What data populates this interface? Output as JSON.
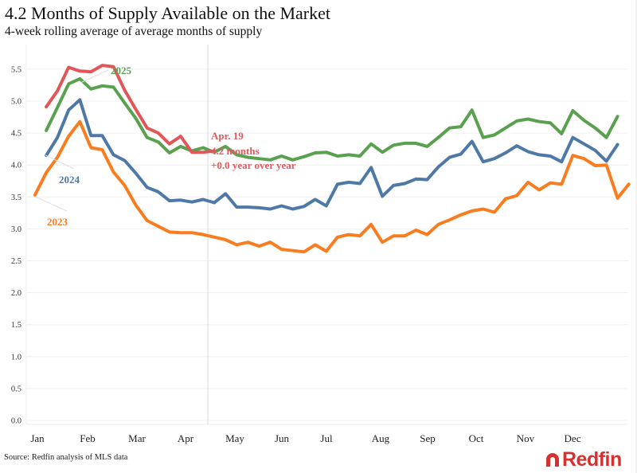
{
  "title": "4.2 Months of Supply Available on the Market",
  "subtitle": "4-week rolling average of average months of supply",
  "source": "Source: Redfin analysis of MLS data",
  "logo_text": "Redfin",
  "colors": {
    "2023": "#f97d1e",
    "2024": "#4e79a7",
    "2025": "#59a14f",
    "2025_ytd": "#e15759",
    "grid": "#f0f0f0",
    "marker": "#e6e6e6"
  },
  "chart_data": {
    "type": "line",
    "title": "4.2 Months of Supply Available on the Market",
    "subtitle": "4-week rolling average of average months of supply",
    "xlabel": "",
    "ylabel": "",
    "ylim": [
      0,
      5.6
    ],
    "yticks": [
      "0.0",
      "0.5",
      "1.0",
      "1.5",
      "2.0",
      "2.5",
      "3.0",
      "3.5",
      "4.0",
      "4.5",
      "5.0",
      "5.5"
    ],
    "ytick_values": [
      0,
      0.5,
      1.0,
      1.5,
      2.0,
      2.5,
      3.0,
      3.5,
      4.0,
      4.5,
      5.0,
      5.5
    ],
    "xticks": [
      "Jan",
      "Feb",
      "Mar",
      "Apr",
      "May",
      "Jun",
      "Jul",
      "Aug",
      "Sep",
      "Oct",
      "Nov",
      "Dec"
    ],
    "x_unit": "week of year (0 = first week of Jan)",
    "grid": true,
    "legend": "inline labels",
    "marker": {
      "week": 15,
      "label": "Apr. 19"
    },
    "annotation": {
      "line1": "Apr. 19",
      "line2": "4.2 months",
      "line3": "+0.0 year over year"
    },
    "series": [
      {
        "name": "2023",
        "label": "2023",
        "start_week": 0,
        "values": [
          3.53,
          3.88,
          4.12,
          4.45,
          4.68,
          4.27,
          4.24,
          3.89,
          3.68,
          3.37,
          3.13,
          3.04,
          2.95,
          2.94,
          2.94,
          2.91,
          2.87,
          2.83,
          2.75,
          2.79,
          2.73,
          2.79,
          2.68,
          2.66,
          2.64,
          2.75,
          2.65,
          2.87,
          2.91,
          2.89,
          3.07,
          2.79,
          2.89,
          2.89,
          2.98,
          2.91,
          3.07,
          3.14,
          3.22,
          3.28,
          3.31,
          3.26,
          3.47,
          3.52,
          3.73,
          3.61,
          3.72,
          3.7,
          4.15,
          4.1,
          3.99,
          4.0,
          3.48,
          3.7
        ]
      },
      {
        "name": "2024",
        "label": "2024",
        "start_week": 1,
        "values": [
          4.15,
          4.43,
          4.86,
          5.02,
          4.46,
          4.46,
          4.16,
          4.07,
          3.87,
          3.65,
          3.58,
          3.44,
          3.45,
          3.42,
          3.46,
          3.41,
          3.55,
          3.34,
          3.34,
          3.33,
          3.31,
          3.36,
          3.31,
          3.35,
          3.46,
          3.36,
          3.7,
          3.73,
          3.71,
          3.96,
          3.51,
          3.68,
          3.71,
          3.78,
          3.77,
          3.97,
          4.12,
          4.17,
          4.37,
          4.05,
          4.1,
          4.19,
          4.3,
          4.21,
          4.16,
          4.14,
          4.05,
          4.43,
          4.33,
          4.23,
          4.06,
          4.32
        ]
      },
      {
        "name": "2025",
        "label": "2025",
        "start_week": 1,
        "values": [
          4.54,
          4.9,
          5.27,
          5.35,
          5.19,
          5.24,
          5.22,
          4.97,
          4.73,
          4.43,
          4.36,
          4.19,
          4.29,
          4.22,
          4.27,
          4.2,
          4.29,
          4.16,
          4.12,
          4.1,
          4.08,
          4.14,
          4.08,
          4.13,
          4.19,
          4.2,
          4.14,
          4.16,
          4.14,
          4.33,
          4.2,
          4.31,
          4.34,
          4.34,
          4.29,
          4.43,
          4.58,
          4.6,
          4.86,
          4.43,
          4.47,
          4.58,
          4.69,
          4.72,
          4.68,
          4.66,
          4.49,
          4.85,
          4.7,
          4.58,
          4.43,
          4.76
        ]
      },
      {
        "name": "2025 YTD",
        "label": "",
        "start_week": 1,
        "values": [
          4.91,
          5.16,
          5.53,
          5.47,
          5.46,
          5.56,
          5.54,
          5.17,
          4.87,
          4.58,
          4.5,
          4.33,
          4.45,
          4.2,
          4.2,
          4.22
        ]
      }
    ]
  }
}
